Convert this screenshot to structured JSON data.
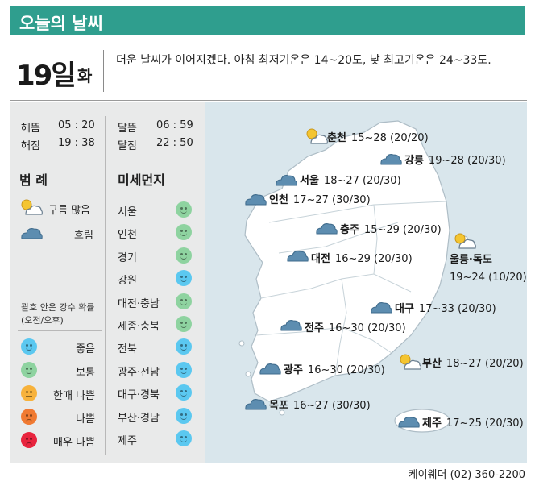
{
  "title": "오늘의 날씨",
  "date": {
    "day": "19일",
    "weekday": "화"
  },
  "summary": "더운 날씨가 이어지겠다. 아침 최저기온은 14~20도, 낮 최고기온은 24~33도.",
  "sun": {
    "rise_label": "해뜸",
    "rise_time": "05 : 20",
    "set_label": "해짐",
    "set_time": "19 : 38"
  },
  "moon": {
    "rise_label": "달뜸",
    "rise_time": "06 : 59",
    "set_label": "달짐",
    "set_time": "22 : 50"
  },
  "legend": {
    "title": "범 례",
    "items": [
      {
        "icon": "partly-cloudy-icon",
        "label": "구름 많음"
      },
      {
        "icon": "cloud-icon",
        "label": "흐림"
      }
    ],
    "precip_note": "괄호 안은 강수 확률 (오전/오후)",
    "air_levels": [
      {
        "label": "좋음",
        "color": "#5bc8f0"
      },
      {
        "label": "보통",
        "color": "#8ed3a0"
      },
      {
        "label": "한때 나쁨",
        "color": "#f7b23b"
      },
      {
        "label": "나쁨",
        "color": "#f07a32"
      },
      {
        "label": "매우 나쁨",
        "color": "#e8243e"
      }
    ]
  },
  "dust": {
    "title": "미세먼지",
    "regions": [
      {
        "name": "서울",
        "level": "보통"
      },
      {
        "name": "인천",
        "level": "보통"
      },
      {
        "name": "경기",
        "level": "보통"
      },
      {
        "name": "강원",
        "level": "좋음"
      },
      {
        "name": "대전·충남",
        "level": "보통"
      },
      {
        "name": "세종·충북",
        "level": "보통"
      },
      {
        "name": "전북",
        "level": "좋음"
      },
      {
        "name": "광주·전남",
        "level": "좋음"
      },
      {
        "name": "대구·경북",
        "level": "좋음"
      },
      {
        "name": "부산·경남",
        "level": "좋음"
      },
      {
        "name": "제주",
        "level": "좋음"
      }
    ]
  },
  "cities": [
    {
      "name": "춘천",
      "temp": "15~28 (20/20)",
      "icon": "partly-cloudy"
    },
    {
      "name": "강릉",
      "temp": "19~28 (20/30)",
      "icon": "cloud"
    },
    {
      "name": "서울",
      "temp": "18~27 (20/30)",
      "icon": "cloud"
    },
    {
      "name": "인천",
      "temp": "17~27 (30/30)",
      "icon": "cloud"
    },
    {
      "name": "충주",
      "temp": "15~29 (20/30)",
      "icon": "cloud"
    },
    {
      "name": "대전",
      "temp": "16~29 (20/30)",
      "icon": "cloud"
    },
    {
      "name": "울릉·독도",
      "temp": "19~24 (10/20)",
      "icon": "partly-cloudy"
    },
    {
      "name": "대구",
      "temp": "17~33 (20/30)",
      "icon": "cloud"
    },
    {
      "name": "전주",
      "temp": "16~30 (20/30)",
      "icon": "cloud"
    },
    {
      "name": "부산",
      "temp": "18~27 (20/20)",
      "icon": "partly-cloudy"
    },
    {
      "name": "광주",
      "temp": "16~30 (20/30)",
      "icon": "cloud"
    },
    {
      "name": "목포",
      "temp": "16~27 (30/30)",
      "icon": "cloud"
    },
    {
      "name": "제주",
      "temp": "17~25 (20/30)",
      "icon": "cloud"
    }
  ],
  "footer": "케이웨더 (02) 360-2200"
}
